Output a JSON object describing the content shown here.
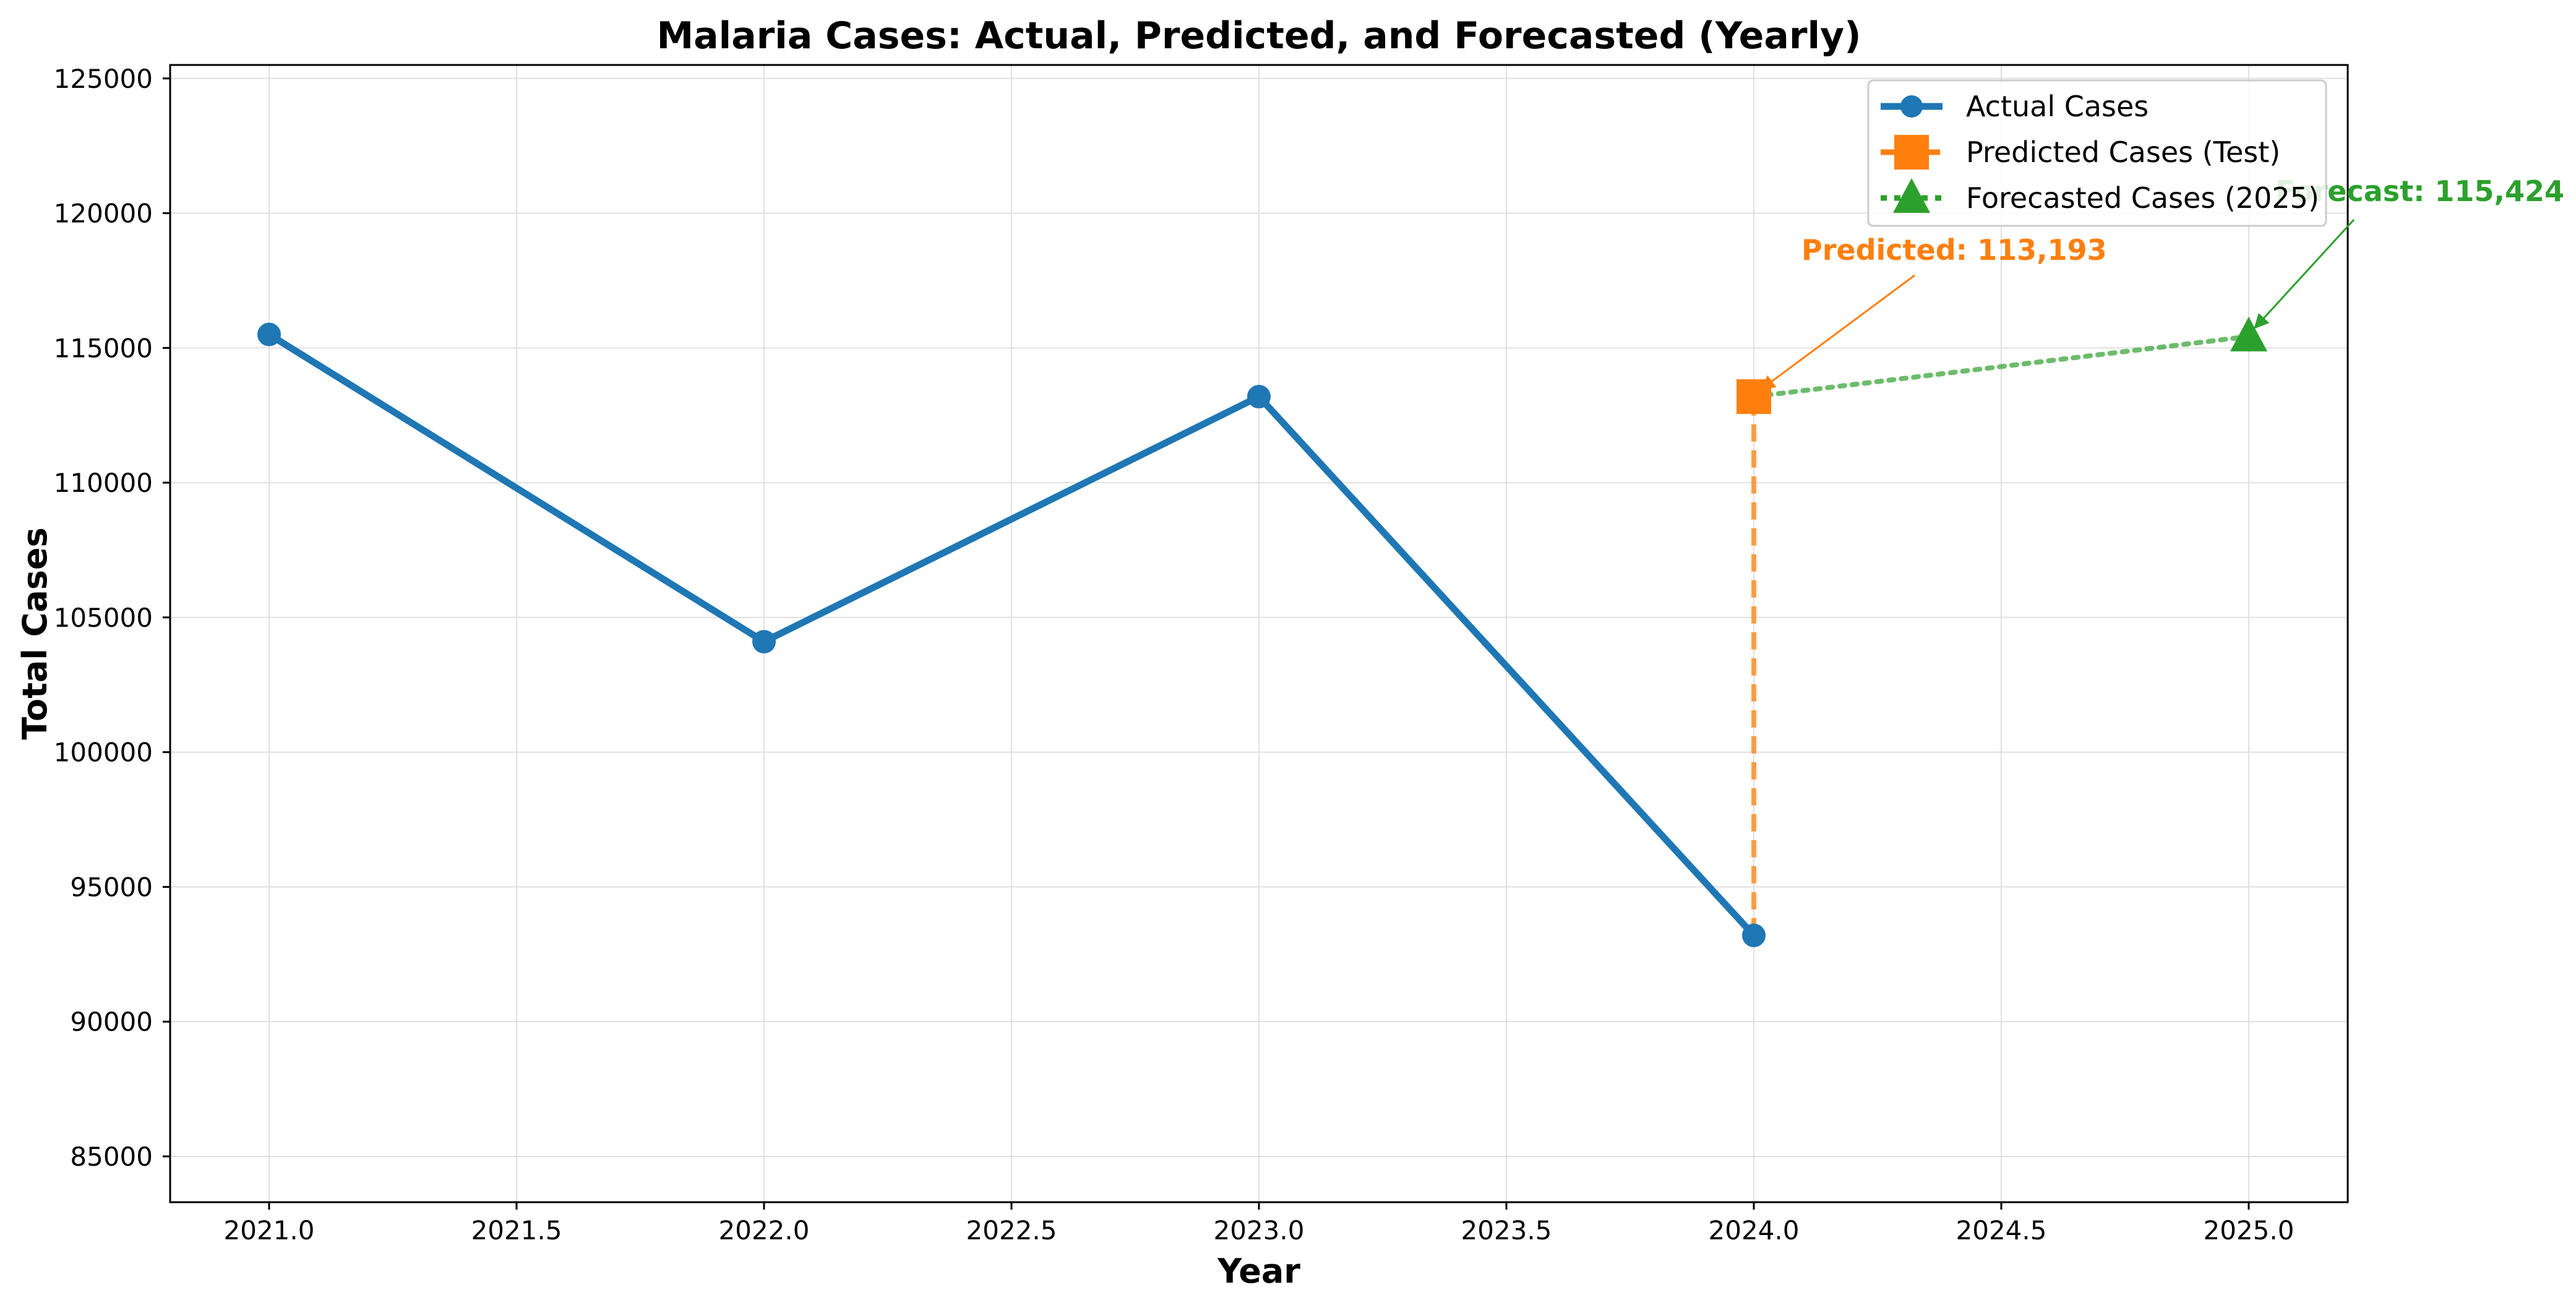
{
  "chart_data": {
    "type": "line",
    "title": "Malaria Cases: Actual, Predicted, and Forecasted (Yearly)",
    "xlabel": "Year",
    "ylabel": "Total Cases",
    "xlim": [
      2020.8,
      2025.2
    ],
    "ylim": [
      83300,
      125500
    ],
    "x_ticks": [
      2021.0,
      2021.5,
      2022.0,
      2022.5,
      2023.0,
      2023.5,
      2024.0,
      2024.5,
      2025.0
    ],
    "x_tick_labels": [
      "2021.0",
      "2021.5",
      "2022.0",
      "2022.5",
      "2023.0",
      "2023.5",
      "2024.0",
      "2024.5",
      "2025.0"
    ],
    "y_ticks": [
      85000,
      90000,
      95000,
      100000,
      105000,
      110000,
      115000,
      120000,
      125000
    ],
    "y_tick_labels": [
      "85000",
      "90000",
      "95000",
      "100000",
      "105000",
      "110000",
      "115000",
      "120000",
      "125000"
    ],
    "grid": true,
    "legend_position": "top-right",
    "series": [
      {
        "name": "Actual Cases",
        "color": "#1f77b4",
        "style": "solid",
        "marker": "circle",
        "x": [
          2021,
          2022,
          2023,
          2024
        ],
        "y": [
          115500,
          104100,
          113193,
          93200
        ]
      },
      {
        "name": "Predicted Cases (Test)",
        "color": "#ff7f0e",
        "style": "dashed",
        "marker": "square",
        "x": [
          2024,
          2024
        ],
        "y": [
          93200,
          113193
        ]
      },
      {
        "name": "Forecasted Cases (2025)",
        "color": "#2ca02c",
        "style": "dotted",
        "marker": "triangle",
        "x": [
          2024,
          2025
        ],
        "y": [
          113193,
          115424
        ]
      }
    ],
    "annotations": [
      {
        "text": "Predicted: 113,193",
        "color": "#ff7f0e",
        "x": 2024,
        "y": 113193
      },
      {
        "text": "Forecast: 115,424",
        "color": "#2ca02c",
        "x": 2025,
        "y": 115424
      }
    ]
  }
}
